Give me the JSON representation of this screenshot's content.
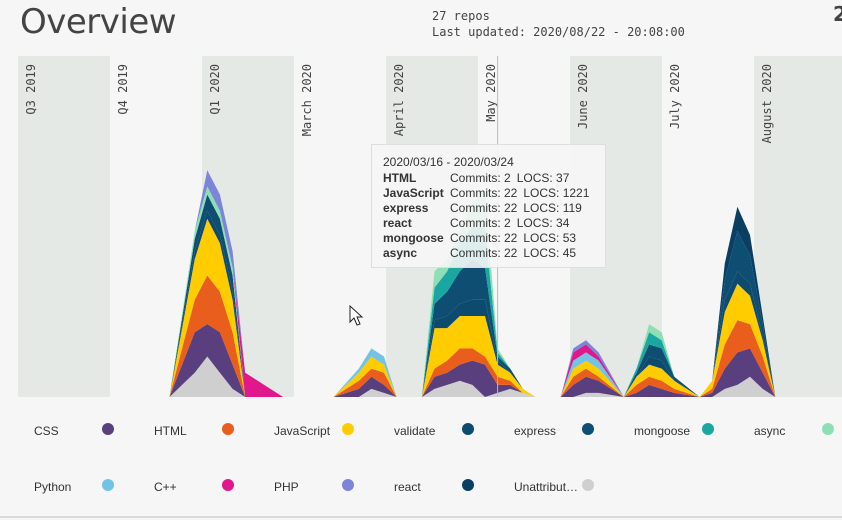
{
  "header": {
    "title": "Overview",
    "repos": "27 repos",
    "last_updated": "Last updated: 2020/08/22 - 20:08:00",
    "edge_digit": "2"
  },
  "chart_data": {
    "type": "area",
    "stacked": true,
    "periods": [
      "Q3 2019",
      "Q4 2019",
      "Q1 2020",
      "March 2020",
      "April 2020",
      "May 2020",
      "June 2020",
      "July 2020",
      "August 2020"
    ],
    "x": [
      "2019/09/23",
      "2019/10/07",
      "2019/10/14",
      "2019/10/21",
      "2019/10/28",
      "2019/11/04",
      "2019/11/11",
      "2019/11/25",
      "2019/12/23",
      "2020/01/06",
      "2020/01/13",
      "2020/01/20",
      "2020/01/27",
      "2020/02/10",
      "2020/02/17",
      "2020/02/24",
      "2020/03/02",
      "2020/03/09",
      "2020/03/16",
      "2020/03/23",
      "2020/03/30",
      "2020/04/06",
      "2020/04/13",
      "2020/04/27",
      "2020/05/04",
      "2020/05/11",
      "2020/05/18",
      "2020/06/01",
      "2020/06/08",
      "2020/06/15",
      "2020/06/22",
      "2020/06/29",
      "2020/07/13",
      "2020/07/20",
      "2020/07/27",
      "2020/08/03",
      "2020/08/10",
      "2020/08/17",
      "2020/08/24"
    ],
    "series": [
      {
        "name": "Unattributed",
        "color": "#cfcfcf",
        "values": [
          0,
          6,
          10,
          6,
          2,
          0,
          0,
          0,
          0,
          0,
          2,
          1,
          0,
          0,
          2,
          3,
          4,
          3,
          0,
          1,
          2,
          1,
          0,
          0,
          0,
          1,
          1,
          0,
          0,
          0,
          0,
          0,
          0,
          0,
          2,
          3,
          5,
          2,
          0
        ]
      },
      {
        "name": "CSS",
        "color": "#5a3f7f",
        "values": [
          0,
          10,
          8,
          10,
          6,
          0,
          0,
          0,
          0,
          2,
          3,
          2,
          0,
          0,
          3,
          3,
          4,
          6,
          8,
          2,
          1,
          0,
          0,
          0,
          3,
          4,
          3,
          0,
          1,
          3,
          2,
          1,
          0,
          1,
          5,
          8,
          7,
          4,
          0
        ]
      },
      {
        "name": "HTML",
        "color": "#e95d1d",
        "values": [
          0,
          8,
          12,
          10,
          8,
          0,
          0,
          0,
          0,
          2,
          2,
          3,
          0,
          0,
          2,
          3,
          4,
          3,
          2,
          2,
          1,
          0,
          0,
          0,
          2,
          2,
          1,
          0,
          2,
          2,
          2,
          1,
          0,
          1,
          6,
          8,
          6,
          4,
          0
        ]
      },
      {
        "name": "JavaScript",
        "color": "#ffcc00",
        "values": [
          0,
          10,
          14,
          12,
          8,
          0,
          0,
          0,
          0,
          2,
          3,
          2,
          0,
          0,
          10,
          8,
          8,
          8,
          10,
          3,
          2,
          1,
          0,
          0,
          2,
          2,
          2,
          0,
          2,
          3,
          3,
          2,
          0,
          2,
          8,
          9,
          7,
          4,
          0
        ]
      },
      {
        "name": "validate",
        "color": "#0c4a6e",
        "values": [
          0,
          2,
          2,
          2,
          2,
          0,
          0,
          0,
          0,
          0,
          0,
          0,
          0,
          0,
          2,
          3,
          3,
          4,
          4,
          1,
          0,
          0,
          0,
          0,
          0,
          0,
          0,
          0,
          0,
          2,
          2,
          0,
          0,
          0,
          3,
          3,
          3,
          1,
          0
        ]
      },
      {
        "name": "express",
        "color": "#0e4e72",
        "values": [
          0,
          3,
          4,
          4,
          4,
          0,
          0,
          0,
          0,
          0,
          0,
          0,
          0,
          0,
          4,
          6,
          8,
          10,
          8,
          1,
          1,
          0,
          0,
          0,
          0,
          0,
          0,
          0,
          1,
          3,
          3,
          1,
          0,
          0,
          5,
          10,
          7,
          3,
          0
        ]
      },
      {
        "name": "mongoose",
        "color": "#1aa6a1",
        "values": [
          0,
          0,
          0,
          0,
          0,
          0,
          0,
          0,
          0,
          0,
          0,
          0,
          0,
          0,
          4,
          5,
          7,
          8,
          10,
          1,
          0,
          0,
          0,
          0,
          0,
          0,
          0,
          0,
          1,
          3,
          2,
          0,
          0,
          0,
          0,
          0,
          0,
          0,
          0
        ]
      },
      {
        "name": "async",
        "color": "#8ee0b4",
        "values": [
          0,
          2,
          2,
          2,
          2,
          0,
          0,
          0,
          0,
          0,
          0,
          0,
          0,
          0,
          4,
          3,
          3,
          6,
          9,
          1,
          0,
          0,
          0,
          0,
          0,
          0,
          0,
          0,
          0,
          2,
          2,
          0,
          0,
          0,
          0,
          0,
          0,
          0,
          0
        ]
      },
      {
        "name": "Python",
        "color": "#73c3e6",
        "values": [
          0,
          0,
          0,
          0,
          0,
          0,
          0,
          0,
          0,
          1,
          2,
          2,
          0,
          0,
          0,
          0,
          0,
          0,
          0,
          0,
          0,
          0,
          0,
          0,
          2,
          2,
          2,
          0,
          0,
          0,
          0,
          0,
          0,
          0,
          0,
          0,
          0,
          0,
          0
        ]
      },
      {
        "name": "C++",
        "color": "#e0188c",
        "values": [
          0,
          0,
          0,
          0,
          0,
          6,
          4,
          0,
          0,
          0,
          0,
          0,
          0,
          0,
          0,
          0,
          0,
          0,
          0,
          0,
          0,
          0,
          0,
          0,
          2,
          2,
          1,
          0,
          0,
          0,
          0,
          0,
          0,
          0,
          0,
          0,
          0,
          0,
          0
        ]
      },
      {
        "name": "PHP",
        "color": "#7b86d8",
        "values": [
          0,
          0,
          4,
          4,
          4,
          0,
          0,
          0,
          0,
          0,
          0,
          0,
          0,
          0,
          0,
          0,
          0,
          0,
          0,
          0,
          0,
          0,
          0,
          0,
          1,
          1,
          1,
          0,
          0,
          0,
          0,
          0,
          0,
          0,
          0,
          0,
          0,
          0,
          0
        ]
      },
      {
        "name": "react",
        "color": "#0a3f63",
        "values": [
          0,
          0,
          0,
          0,
          0,
          0,
          0,
          0,
          0,
          0,
          0,
          0,
          0,
          0,
          0,
          0,
          0,
          0,
          0,
          0,
          0,
          0,
          0,
          0,
          0,
          0,
          0,
          0,
          0,
          0,
          0,
          0,
          0,
          0,
          4,
          6,
          5,
          2,
          0
        ]
      }
    ],
    "hover_date": "2020/03/23",
    "grid": false,
    "legend_position": "bottom"
  },
  "tooltip": {
    "range": "2020/03/16 - 2020/03/24",
    "rows": [
      {
        "name": "HTML",
        "commits": "Commits: 2",
        "locs": "LOCS: 37"
      },
      {
        "name": "JavaScript",
        "commits": "Commits: 22",
        "locs": "LOCS: 1221"
      },
      {
        "name": "express",
        "commits": "Commits: 22",
        "locs": "LOCS: 119"
      },
      {
        "name": "react",
        "commits": "Commits: 2",
        "locs": "LOCS: 34"
      },
      {
        "name": "mongoose",
        "commits": "Commits: 22",
        "locs": "LOCS: 53"
      },
      {
        "name": "async",
        "commits": "Commits: 22",
        "locs": "LOCS: 45"
      }
    ]
  },
  "legend": [
    {
      "label": "CSS",
      "color": "#5a3f7f"
    },
    {
      "label": "HTML",
      "color": "#e95d1d"
    },
    {
      "label": "JavaScript",
      "color": "#ffcc00"
    },
    {
      "label": "validate",
      "color": "#0c4a6e"
    },
    {
      "label": "express",
      "color": "#0e4e72"
    },
    {
      "label": "mongoose",
      "color": "#1aa6a1"
    },
    {
      "label": "async",
      "color": "#8ee0b4"
    },
    {
      "label": "Python",
      "color": "#73c3e6"
    },
    {
      "label": "C++",
      "color": "#e0188c"
    },
    {
      "label": "PHP",
      "color": "#7b86d8"
    },
    {
      "label": "react",
      "color": "#0a3f63"
    },
    {
      "label": "Unattribut…",
      "color": "#cfcfcf"
    }
  ]
}
